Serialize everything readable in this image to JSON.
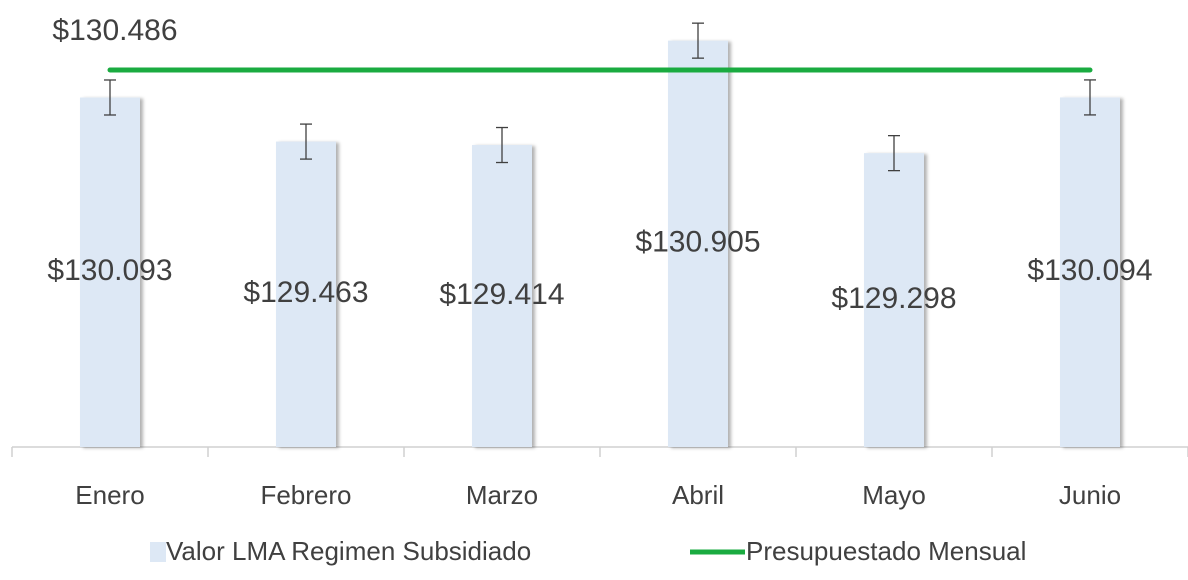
{
  "chart_data": {
    "type": "bar",
    "categories": [
      "Enero",
      "Febrero",
      "Marzo",
      "Abril",
      "Mayo",
      "Junio"
    ],
    "series": [
      {
        "name": "Valor LMA Regimen Subsidiado",
        "type": "bar",
        "color": "#dde8f5",
        "values": [
          130.093,
          129.463,
          129.414,
          130.905,
          129.298,
          130.094
        ],
        "value_labels": [
          "$130.093",
          "$129.463",
          "$129.414",
          "$130.905",
          "$129.298",
          "$130.094"
        ],
        "errors": [
          0.25,
          0.25,
          0.25,
          0.25,
          0.25,
          0.25
        ]
      },
      {
        "name": "Presupuestado Mensual",
        "type": "line",
        "color": "#1aab40",
        "values": [
          130.486,
          130.486,
          130.486,
          130.486,
          130.486,
          130.486
        ],
        "value_labels": [
          "$130.486",
          null,
          null,
          null,
          null,
          null
        ]
      }
    ],
    "ylim": [
      125.1,
      131.0
    ],
    "legend": "bottom"
  }
}
